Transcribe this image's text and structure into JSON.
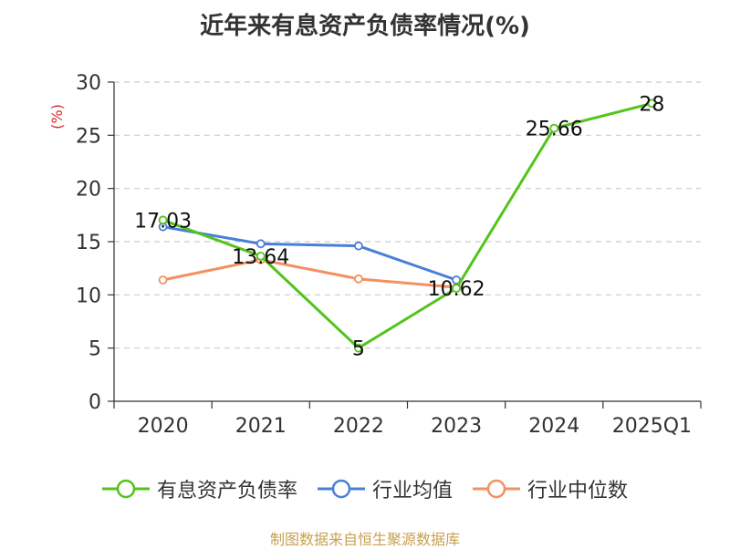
{
  "colors": {
    "debt_ratio": "#52c41a",
    "industry_avg": "#4a7fd8",
    "industry_median": "#f49060",
    "grid": "#cccccc",
    "axis": "#333333",
    "unit": "#d62728",
    "source": "#c8a050"
  },
  "chart_data": {
    "type": "line",
    "title": "近年来有息资产负债率情况(%)",
    "ylabel": "(%)",
    "categories": [
      "2020",
      "2021",
      "2022",
      "2023",
      "2024",
      "2025Q1"
    ],
    "ylim": [
      0,
      30
    ],
    "yticks": [
      0,
      5,
      10,
      15,
      20,
      25,
      30
    ],
    "grid": true,
    "legend_position": "bottom",
    "series": [
      {
        "name": "有息资产负债率",
        "key": "debt_ratio",
        "values": [
          17.03,
          13.64,
          5,
          10.62,
          25.66,
          28
        ],
        "labels": [
          "17.03",
          "13.64",
          "5",
          "10.62",
          "25.66",
          "28"
        ]
      },
      {
        "name": "行业均值",
        "key": "industry_avg",
        "values": [
          16.4,
          14.8,
          14.6,
          11.4,
          null,
          null
        ]
      },
      {
        "name": "行业中位数",
        "key": "industry_median",
        "values": [
          11.4,
          13.3,
          11.5,
          10.7,
          null,
          null
        ]
      }
    ]
  },
  "footer": {
    "source": "制图数据来自恒生聚源数据库"
  }
}
